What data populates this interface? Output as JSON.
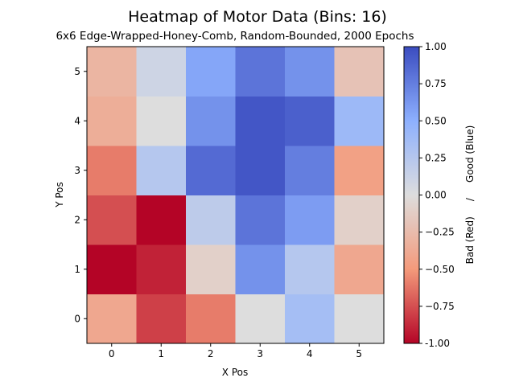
{
  "chart_data": {
    "type": "heatmap",
    "title": "Heatmap of Motor Data (Bins: 16)",
    "subtitle": "6x6 Edge-Wrapped-Honey-Comb, Random-Bounded, 2000 Epochs",
    "xlabel": "X Pos",
    "ylabel": "Y Pos",
    "x_ticks": [
      "0",
      "1",
      "2",
      "3",
      "4",
      "5"
    ],
    "y_ticks": [
      "0",
      "1",
      "2",
      "3",
      "4",
      "5"
    ],
    "xlim": [
      -0.5,
      5.5
    ],
    "ylim": [
      -0.5,
      5.5
    ],
    "colormap": "coolwarm_r",
    "vmin": -1.0,
    "vmax": 1.0,
    "colorbar_label": "Bad (Red)     /     Good (Blue)",
    "colorbar_ticks": [
      "-1.00",
      "−0.75",
      "−0.50",
      "−0.25",
      "0.00",
      "0.25",
      "0.50",
      "0.75",
      "1.00"
    ],
    "values": [
      [
        -0.4,
        -0.8,
        -0.6,
        0.0,
        0.35,
        0.0
      ],
      [
        -1.0,
        -0.9,
        -0.1,
        0.65,
        0.25,
        -0.4
      ],
      [
        -0.75,
        -1.0,
        0.2,
        0.8,
        0.6,
        -0.1
      ],
      [
        -0.6,
        0.25,
        0.85,
        0.95,
        0.75,
        -0.45
      ],
      [
        -0.35,
        0.0,
        0.65,
        0.95,
        0.9,
        0.4
      ],
      [
        -0.3,
        0.1,
        0.55,
        0.8,
        0.65,
        -0.2
      ]
    ]
  }
}
